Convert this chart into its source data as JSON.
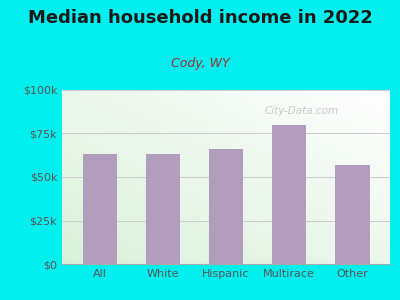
{
  "title": "Median household income in 2022",
  "subtitle": "Cody, WY",
  "categories": [
    "All",
    "White",
    "Hispanic",
    "Multirace",
    "Other"
  ],
  "values": [
    63000,
    63000,
    66000,
    80000,
    57000
  ],
  "bar_color": "#b39dbd",
  "title_color": "#1a1a1a",
  "subtitle_color": "#993333",
  "axis_label_color": "#555555",
  "background_outer": "#00f0f0",
  "yticks": [
    0,
    25000,
    50000,
    75000,
    100000
  ],
  "ytick_labels": [
    "$0",
    "$25k",
    "$50k",
    "$75k",
    "$100k"
  ],
  "ylim": [
    0,
    100000
  ],
  "watermark": "City-Data.com",
  "title_fontsize": 13,
  "subtitle_fontsize": 9,
  "tick_fontsize": 8
}
